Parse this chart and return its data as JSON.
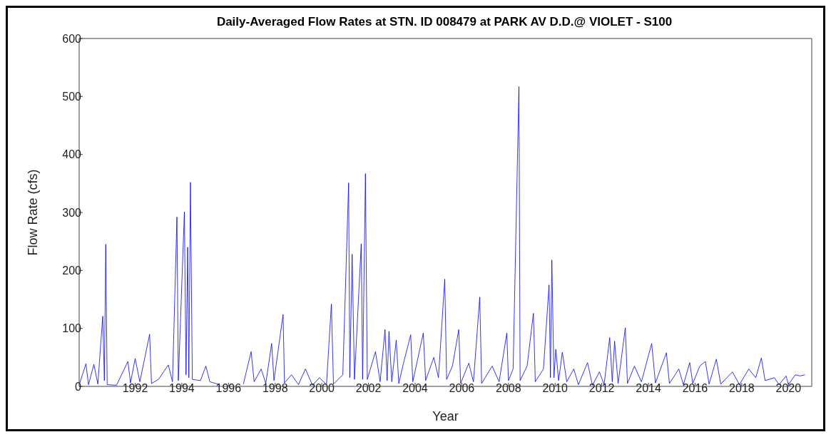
{
  "chart_data": {
    "type": "line",
    "title": "Daily-Averaged Flow Rates at STN. ID 008479 at PARK AV D.D.@ VIOLET - S100",
    "xlabel": "Year",
    "ylabel": "Flow Rate (cfs)",
    "x": [
      1989.62,
      1989.89,
      1990.0,
      1990.23,
      1990.4,
      1990.61,
      1990.68,
      1990.74,
      1990.8,
      1991.2,
      1991.69,
      1991.8,
      1992.0,
      1992.2,
      1992.62,
      1992.7,
      1993.0,
      1993.42,
      1993.6,
      1993.79,
      1993.85,
      1994.11,
      1994.18,
      1994.25,
      1994.3,
      1994.37,
      1994.45,
      1994.8,
      1995.03,
      1995.2,
      1995.61,
      1995.62,
      1996.64,
      1996.97,
      1997.1,
      1997.4,
      1997.6,
      1997.85,
      1997.95,
      1998.34,
      1998.4,
      1998.7,
      1999.0,
      1999.3,
      1999.6,
      1999.9,
      2000.2,
      2000.41,
      2000.5,
      2000.9,
      2001.15,
      2001.2,
      2001.3,
      2001.4,
      2001.69,
      2001.75,
      2001.87,
      2001.95,
      2002.3,
      2002.5,
      2002.71,
      2002.8,
      2002.88,
      2003.0,
      2003.19,
      2003.3,
      2003.5,
      2003.81,
      2003.9,
      2004.35,
      2004.45,
      2004.8,
      2005.0,
      2005.27,
      2005.35,
      2005.6,
      2005.87,
      2005.95,
      2006.3,
      2006.5,
      2006.77,
      2006.85,
      2007.3,
      2007.6,
      2007.93,
      2008.0,
      2008.2,
      2008.45,
      2008.5,
      2008.8,
      2009.07,
      2009.15,
      2009.5,
      2009.74,
      2009.8,
      2009.86,
      2009.95,
      2010.03,
      2010.15,
      2010.31,
      2010.5,
      2010.8,
      2011.0,
      2011.39,
      2011.6,
      2011.9,
      2012.1,
      2012.34,
      2012.45,
      2012.55,
      2012.7,
      2013.01,
      2013.1,
      2013.4,
      2013.7,
      2014.14,
      2014.3,
      2014.77,
      2014.9,
      2015.3,
      2015.5,
      2015.77,
      2015.9,
      2016.2,
      2016.44,
      2016.6,
      2016.91,
      2017.1,
      2017.6,
      2017.9,
      2018.3,
      2018.6,
      2018.84,
      2019.0,
      2019.4,
      2019.6,
      2019.9,
      2020.0,
      2020.3,
      2020.5,
      2020.71
    ],
    "series": [
      {
        "color": "#0000ff",
        "values": [
          5,
          39,
          3,
          38,
          4,
          121,
          10,
          245,
          3,
          2,
          43,
          6,
          48,
          8,
          90,
          5,
          12,
          37,
          8,
          292,
          10,
          301,
          20,
          240,
          15,
          352,
          12,
          10,
          35,
          8,
          3,
          null,
          4,
          60,
          8,
          30,
          5,
          74,
          10,
          124,
          6,
          20,
          3,
          30,
          2,
          15,
          3,
          142,
          4,
          20,
          351,
          15,
          228,
          12,
          246,
          12,
          367,
          12,
          60,
          8,
          98,
          10,
          95,
          8,
          80,
          5,
          40,
          89,
          8,
          92,
          10,
          50,
          15,
          185,
          12,
          35,
          98,
          5,
          40,
          8,
          154,
          5,
          35,
          8,
          92,
          10,
          30,
          517,
          10,
          35,
          126,
          8,
          30,
          175,
          15,
          218,
          15,
          64,
          10,
          59,
          8,
          30,
          3,
          41,
          2,
          25,
          3,
          84,
          8,
          78,
          5,
          101,
          5,
          35,
          8,
          74,
          6,
          58,
          5,
          30,
          3,
          41,
          5,
          35,
          43,
          4,
          47,
          4,
          25,
          3,
          30,
          15,
          49,
          10,
          15,
          3,
          18,
          3,
          20,
          18,
          20
        ]
      }
    ],
    "xlim": [
      1989.6,
      2021
    ],
    "xticks": [
      1992,
      1994,
      1996,
      1998,
      2000,
      2002,
      2004,
      2006,
      2008,
      2010,
      2012,
      2014,
      2016,
      2018,
      2020
    ],
    "ylim": [
      0,
      600
    ],
    "yticks": [
      0,
      100,
      200,
      300,
      400,
      500,
      600
    ]
  }
}
